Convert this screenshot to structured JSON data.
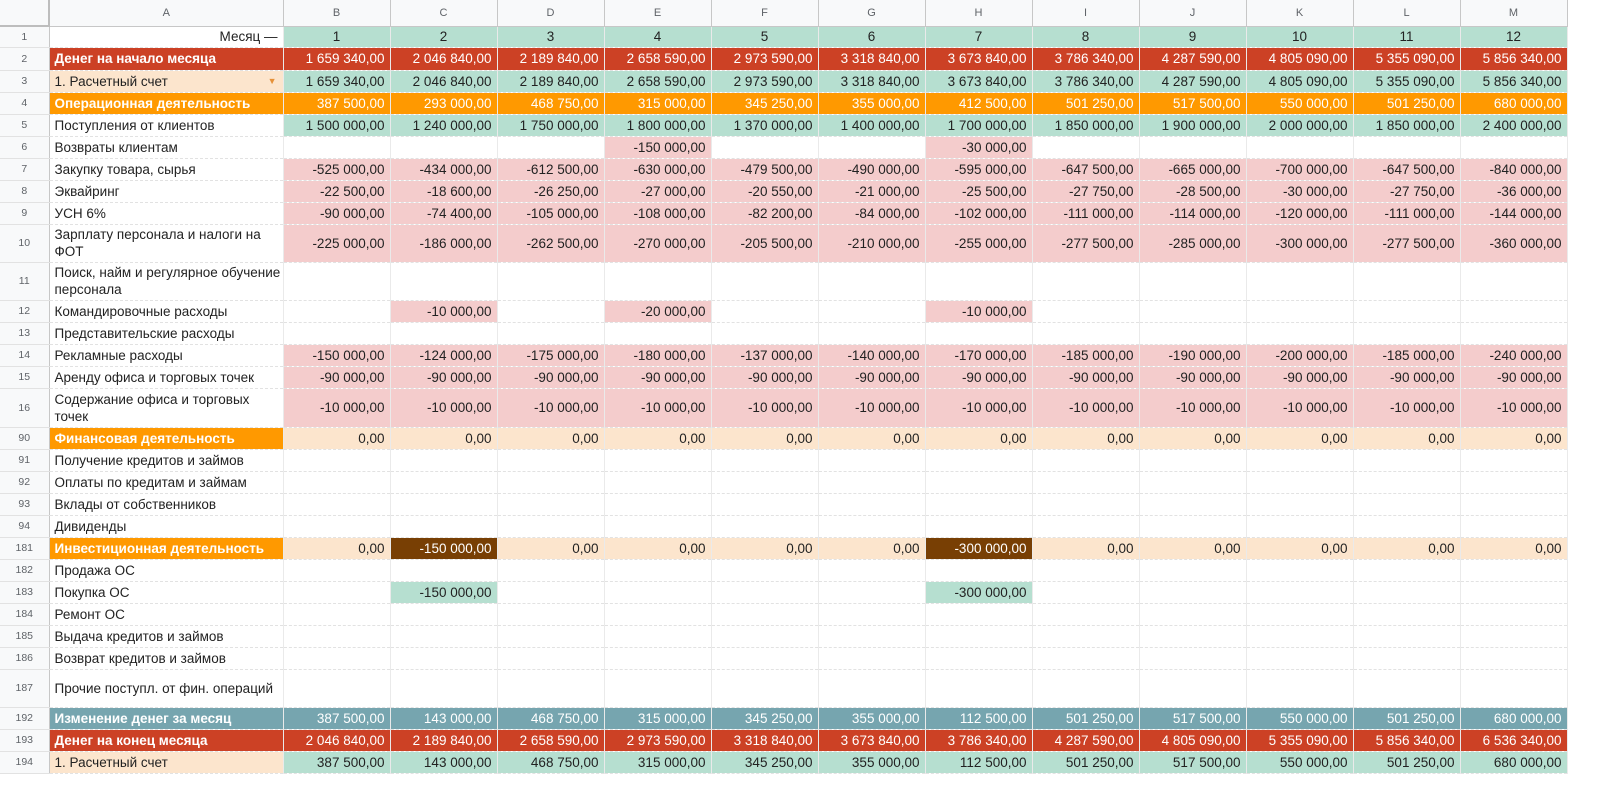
{
  "columns": [
    "A",
    "B",
    "C",
    "D",
    "E",
    "F",
    "G",
    "H",
    "I",
    "J",
    "K",
    "L",
    "M"
  ],
  "rows": [
    {
      "n": "1",
      "h": 21,
      "label": "Месяц —",
      "label_align": "right",
      "style": "plain",
      "values": [
        "1",
        "2",
        "3",
        "4",
        "5",
        "6",
        "7",
        "8",
        "9",
        "10",
        "11",
        "12"
      ],
      "val_align": "center"
    },
    {
      "n": "2",
      "h": 23,
      "label": "Денег на начало месяца",
      "style": "red",
      "values": [
        "1 659 340,00",
        "2 046 840,00",
        "2 189 840,00",
        "2 658 590,00",
        "2 973 590,00",
        "3 318 840,00",
        "3 673 840,00",
        "3 786 340,00",
        "4 287 590,00",
        "4 805 090,00",
        "5 355 090,00",
        "5 856 340,00"
      ]
    },
    {
      "n": "3",
      "h": 22,
      "label": "1. Расчетный счет",
      "dropdown": "▼",
      "style": "account",
      "values": [
        "1 659 340,00",
        "2 046 840,00",
        "2 189 840,00",
        "2 658 590,00",
        "2 973 590,00",
        "3 318 840,00",
        "3 673 840,00",
        "3 786 340,00",
        "4 287 590,00",
        "4 805 090,00",
        "5 355 090,00",
        "5 856 340,00"
      ]
    },
    {
      "n": "4",
      "h": 22,
      "label": "Операционная деятельность",
      "style": "orange",
      "values": [
        "387 500,00",
        "293 000,00",
        "468 750,00",
        "315 000,00",
        "345 250,00",
        "355 000,00",
        "412 500,00",
        "501 250,00",
        "517 500,00",
        "550 000,00",
        "501 250,00",
        "680 000,00"
      ]
    },
    {
      "n": "5",
      "h": 22,
      "label": "Поступления от клиентов",
      "style": "income",
      "values": [
        "1 500 000,00",
        "1 240 000,00",
        "1 750 000,00",
        "1 800 000,00",
        "1 370 000,00",
        "1 400 000,00",
        "1 700 000,00",
        "1 850 000,00",
        "1 900 000,00",
        "2 000 000,00",
        "1 850 000,00",
        "2 400 000,00"
      ]
    },
    {
      "n": "6",
      "h": 22,
      "label": "Возвраты клиентам",
      "style": "expense",
      "values": [
        "",
        "",
        "",
        "-150 000,00",
        "",
        "",
        "-30 000,00",
        "",
        "",
        "",
        "",
        ""
      ]
    },
    {
      "n": "7",
      "h": 22,
      "label": "Закупку товара, сырья",
      "style": "expense",
      "values": [
        "-525 000,00",
        "-434 000,00",
        "-612 500,00",
        "-630 000,00",
        "-479 500,00",
        "-490 000,00",
        "-595 000,00",
        "-647 500,00",
        "-665 000,00",
        "-700 000,00",
        "-647 500,00",
        "-840 000,00"
      ]
    },
    {
      "n": "8",
      "h": 22,
      "label": "Эквайринг",
      "style": "expense",
      "values": [
        "-22 500,00",
        "-18 600,00",
        "-26 250,00",
        "-27 000,00",
        "-20 550,00",
        "-21 000,00",
        "-25 500,00",
        "-27 750,00",
        "-28 500,00",
        "-30 000,00",
        "-27 750,00",
        "-36 000,00"
      ]
    },
    {
      "n": "9",
      "h": 22,
      "label": "УСН 6%",
      "style": "expense",
      "values": [
        "-90 000,00",
        "-74 400,00",
        "-105 000,00",
        "-108 000,00",
        "-82 200,00",
        "-84 000,00",
        "-102 000,00",
        "-111 000,00",
        "-114 000,00",
        "-120 000,00",
        "-111 000,00",
        "-144 000,00"
      ]
    },
    {
      "n": "10",
      "h": 38,
      "label": "Зарплату персонала и налоги на ФОТ",
      "style": "expense",
      "values": [
        "-225 000,00",
        "-186 000,00",
        "-262 500,00",
        "-270 000,00",
        "-205 500,00",
        "-210 000,00",
        "-255 000,00",
        "-277 500,00",
        "-285 000,00",
        "-300 000,00",
        "-277 500,00",
        "-360 000,00"
      ]
    },
    {
      "n": "11",
      "h": 38,
      "label": "Поиск, найм и регулярное обучение персонала",
      "style": "expense",
      "values": [
        "",
        "",
        "",
        "",
        "",
        "",
        "",
        "",
        "",
        "",
        "",
        ""
      ]
    },
    {
      "n": "12",
      "h": 22,
      "label": "Командировочные расходы",
      "style": "expense",
      "values": [
        "",
        "-10 000,00",
        "",
        "-20 000,00",
        "",
        "",
        "-10 000,00",
        "",
        "",
        "",
        "",
        ""
      ]
    },
    {
      "n": "13",
      "h": 22,
      "label": "Представительские расходы",
      "style": "expense",
      "values": [
        "",
        "",
        "",
        "",
        "",
        "",
        "",
        "",
        "",
        "",
        "",
        ""
      ]
    },
    {
      "n": "14",
      "h": 22,
      "label": "Рекламные расходы",
      "style": "expense",
      "values": [
        "-150 000,00",
        "-124 000,00",
        "-175 000,00",
        "-180 000,00",
        "-137 000,00",
        "-140 000,00",
        "-170 000,00",
        "-185 000,00",
        "-190 000,00",
        "-200 000,00",
        "-185 000,00",
        "-240 000,00"
      ]
    },
    {
      "n": "15",
      "h": 22,
      "label": "Аренду офиса и торговых точек",
      "style": "expense",
      "values": [
        "-90 000,00",
        "-90 000,00",
        "-90 000,00",
        "-90 000,00",
        "-90 000,00",
        "-90 000,00",
        "-90 000,00",
        "-90 000,00",
        "-90 000,00",
        "-90 000,00",
        "-90 000,00",
        "-90 000,00"
      ]
    },
    {
      "n": "16",
      "h": 39,
      "label": "Содержание офиса и торговых точек",
      "style": "expense",
      "values": [
        "-10 000,00",
        "-10 000,00",
        "-10 000,00",
        "-10 000,00",
        "-10 000,00",
        "-10 000,00",
        "-10 000,00",
        "-10 000,00",
        "-10 000,00",
        "-10 000,00",
        "-10 000,00",
        "-10 000,00"
      ]
    },
    {
      "n": "90",
      "h": 22,
      "label": "Финансовая деятельность",
      "style": "section",
      "values": [
        "0,00",
        "0,00",
        "0,00",
        "0,00",
        "0,00",
        "0,00",
        "0,00",
        "0,00",
        "0,00",
        "0,00",
        "0,00",
        "0,00"
      ]
    },
    {
      "n": "91",
      "h": 22,
      "label": "Получение кредитов и займов",
      "style": "plain",
      "values": [
        "",
        "",
        "",
        "",
        "",
        "",
        "",
        "",
        "",
        "",
        "",
        ""
      ]
    },
    {
      "n": "92",
      "h": 22,
      "label": "Оплаты по кредитам и займам",
      "style": "plain",
      "values": [
        "",
        "",
        "",
        "",
        "",
        "",
        "",
        "",
        "",
        "",
        "",
        ""
      ]
    },
    {
      "n": "93",
      "h": 22,
      "label": "Вклады от собственников",
      "style": "plain",
      "values": [
        "",
        "",
        "",
        "",
        "",
        "",
        "",
        "",
        "",
        "",
        "",
        ""
      ]
    },
    {
      "n": "94",
      "h": 22,
      "label": "Дивиденды",
      "style": "plain",
      "values": [
        "",
        "",
        "",
        "",
        "",
        "",
        "",
        "",
        "",
        "",
        "",
        ""
      ]
    },
    {
      "n": "181",
      "h": 22,
      "label": "Инвестиционная деятельность",
      "style": "section",
      "values": [
        "0,00",
        "-150 000,00",
        "0,00",
        "0,00",
        "0,00",
        "0,00",
        "-300 000,00",
        "0,00",
        "0,00",
        "0,00",
        "0,00",
        "0,00"
      ]
    },
    {
      "n": "182",
      "h": 22,
      "label": "Продажа ОС",
      "style": "plain",
      "values": [
        "",
        "",
        "",
        "",
        "",
        "",
        "",
        "",
        "",
        "",
        "",
        ""
      ]
    },
    {
      "n": "183",
      "h": 22,
      "label": "Покупка ОС",
      "style": "plain",
      "values": [
        "",
        "-150 000,00",
        "",
        "",
        "",
        "",
        "-300 000,00",
        "",
        "",
        "",
        "",
        ""
      ]
    },
    {
      "n": "184",
      "h": 22,
      "label": "Ремонт ОС",
      "style": "plain",
      "values": [
        "",
        "",
        "",
        "",
        "",
        "",
        "",
        "",
        "",
        "",
        "",
        ""
      ]
    },
    {
      "n": "185",
      "h": 22,
      "label": "Выдача кредитов и займов",
      "style": "plain",
      "values": [
        "",
        "",
        "",
        "",
        "",
        "",
        "",
        "",
        "",
        "",
        "",
        ""
      ]
    },
    {
      "n": "186",
      "h": 22,
      "label": "Возврат кредитов и займов",
      "style": "plain",
      "values": [
        "",
        "",
        "",
        "",
        "",
        "",
        "",
        "",
        "",
        "",
        "",
        ""
      ]
    },
    {
      "n": "187",
      "h": 38,
      "label": "Прочие поступл. от фин. операций",
      "style": "plain",
      "values": [
        "",
        "",
        "",
        "",
        "",
        "",
        "",
        "",
        "",
        "",
        "",
        ""
      ]
    },
    {
      "n": "192",
      "h": 22,
      "label": "Изменение денег за месяц",
      "style": "teal",
      "values": [
        "387 500,00",
        "143 000,00",
        "468 750,00",
        "315 000,00",
        "345 250,00",
        "355 000,00",
        "112 500,00",
        "501 250,00",
        "517 500,00",
        "550 000,00",
        "501 250,00",
        "680 000,00"
      ]
    },
    {
      "n": "193",
      "h": 22,
      "label": "Денег на конец месяца",
      "style": "red",
      "values": [
        "2 046 840,00",
        "2 189 840,00",
        "2 658 590,00",
        "2 973 590,00",
        "3 318 840,00",
        "3 673 840,00",
        "3 786 340,00",
        "4 287 590,00",
        "4 805 090,00",
        "5 355 090,00",
        "5 856 340,00",
        "6 536 340,00"
      ]
    },
    {
      "n": "194",
      "h": 22,
      "label": "1. Расчетный счет",
      "style": "account2",
      "values": [
        "387 500,00",
        "143 000,00",
        "468 750,00",
        "315 000,00",
        "345 250,00",
        "355 000,00",
        "112 500,00",
        "501 250,00",
        "517 500,00",
        "550 000,00",
        "501 250,00",
        "680 000,00"
      ]
    }
  ]
}
